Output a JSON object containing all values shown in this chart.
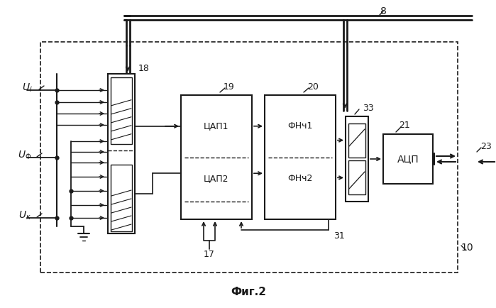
{
  "title": "Фиг.2",
  "bg_color": "#ffffff",
  "line_color": "#1a1a1a",
  "labels": {
    "Ui": "U_i",
    "Uphi": "U_φ",
    "Uk": "U_к",
    "n18": "18",
    "n19": "19",
    "n20": "20",
    "n21": "21",
    "n23": "23",
    "n33": "33",
    "n17": "17",
    "n31": "31",
    "n8": "8",
    "n10": "10",
    "cap1": "ЦАП1",
    "cap2": "ЦАП2",
    "fnch1": "ФНч1",
    "fnch2": "ФНч2",
    "acp": "АЦП"
  }
}
